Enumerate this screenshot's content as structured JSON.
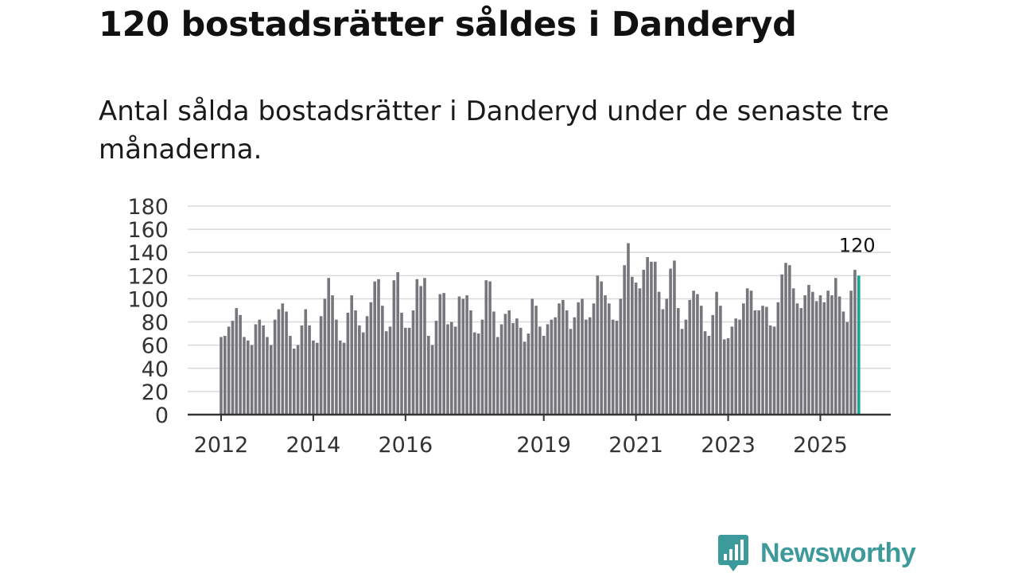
{
  "title": "120 bostadsrätter såldes i Danderyd",
  "subtitle": "Antal sålda bostadsrätter i Danderyd under de senaste tre månaderna.",
  "brand": {
    "name": "Newsworthy",
    "color": "#3d9a9b"
  },
  "colors": {
    "bar": "#76767c",
    "highlight": "#1aa39b",
    "grid": "#d9d9d9",
    "axis": "#333333"
  },
  "chart_data": {
    "type": "bar",
    "title": "120 bostadsrätter såldes i Danderyd",
    "xlabel": "",
    "ylabel": "",
    "ylim": [
      0,
      180
    ],
    "yticks": [
      0,
      20,
      40,
      60,
      80,
      100,
      120,
      140,
      160,
      180
    ],
    "xticks": [
      "2012",
      "2014",
      "2016",
      "2019",
      "2021",
      "2023",
      "2025"
    ],
    "start": "2012-01",
    "frequency": "monthly",
    "values": [
      67,
      68,
      76,
      81,
      92,
      86,
      67,
      64,
      60,
      78,
      82,
      77,
      67,
      60,
      82,
      91,
      96,
      89,
      68,
      57,
      60,
      77,
      91,
      77,
      64,
      62,
      85,
      100,
      118,
      103,
      82,
      64,
      62,
      88,
      103,
      90,
      77,
      71,
      85,
      97,
      115,
      117,
      94,
      72,
      76,
      116,
      123,
      88,
      75,
      75,
      90,
      117,
      111,
      118,
      68,
      60,
      81,
      104,
      105,
      78,
      80,
      76,
      102,
      100,
      103,
      90,
      71,
      70,
      82,
      116,
      115,
      89,
      67,
      78,
      87,
      90,
      79,
      83,
      75,
      63,
      70,
      100,
      94,
      76,
      68,
      78,
      82,
      84,
      96,
      99,
      90,
      74,
      84,
      97,
      100,
      82,
      84,
      96,
      120,
      115,
      103,
      96,
      82,
      81,
      100,
      129,
      148,
      119,
      114,
      109,
      125,
      136,
      132,
      132,
      106,
      91,
      100,
      126,
      133,
      92,
      74,
      82,
      99,
      107,
      104,
      94,
      72,
      68,
      86,
      106,
      94,
      65,
      66,
      76,
      83,
      82,
      96,
      109,
      107,
      90,
      90,
      94,
      93,
      77,
      76,
      97,
      121,
      131,
      129,
      109,
      96,
      92,
      103,
      112,
      106,
      98,
      103,
      97,
      107,
      103,
      118,
      102,
      89,
      80,
      107,
      125,
      120
    ],
    "highlight_last": true,
    "last_value_label": "120"
  }
}
